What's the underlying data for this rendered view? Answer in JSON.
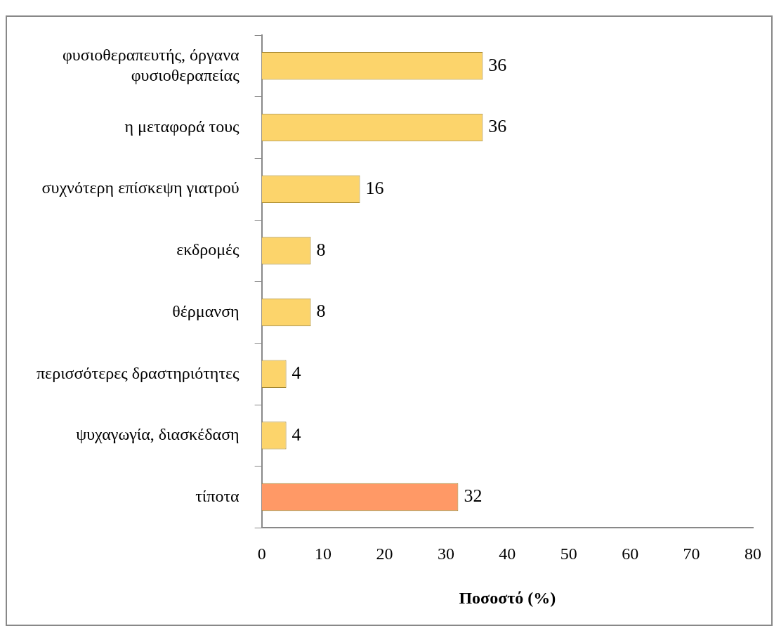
{
  "chart_data": {
    "type": "bar",
    "orientation": "horizontal",
    "xlabel": "Ποσοστό (%)",
    "categories": [
      "φυσιοθεραπευτής, όργανα φυσιοθεραπείας",
      "η μεταφορά τους",
      "συχνότερη επίσκεψη γιατρού",
      "εκδρομές",
      "θέρμανση",
      "περισσότερες δραστηριότητες",
      "ψυχαγωγία, διασκέδαση",
      "τίποτα"
    ],
    "values": [
      36,
      36,
      16,
      8,
      8,
      4,
      4,
      32
    ],
    "colors": [
      "#fcd46b",
      "#fcd46b",
      "#fcd46b",
      "#fcd46b",
      "#fcd46b",
      "#fcd46b",
      "#fcd46b",
      "#ff9966"
    ],
    "xlim": [
      0,
      80
    ],
    "xticks": [
      0,
      10,
      20,
      30,
      40,
      50,
      60,
      70,
      80
    ],
    "grid": false,
    "legend": false,
    "data_labels": true
  }
}
